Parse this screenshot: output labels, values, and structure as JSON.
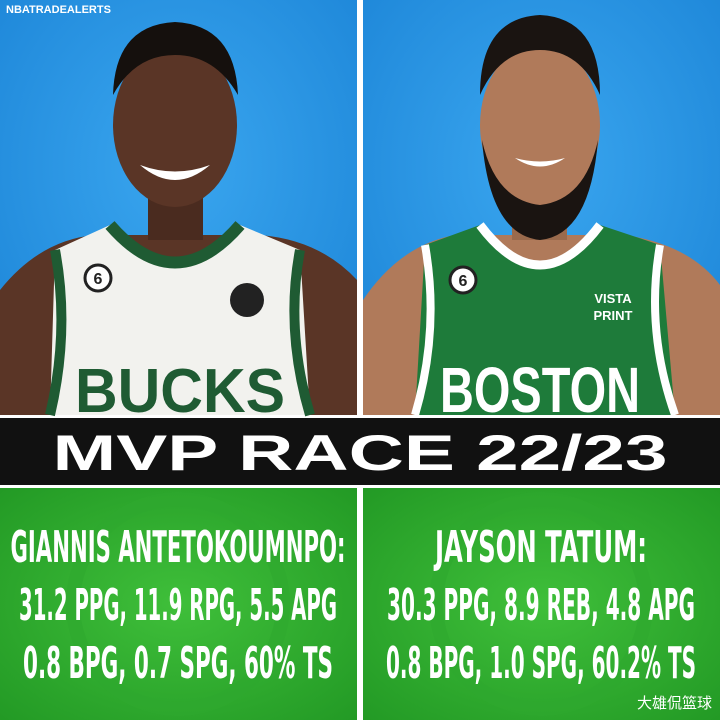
{
  "header": {
    "handle": "NBATRADEALERTS",
    "title": "MVP RACE 22/23"
  },
  "players": [
    {
      "name": "GIANNIS ANTETOKOUMNPO:",
      "line1": "31.2 PPG, 11.9 RPG, 5.5 APG",
      "line2": "0.8 BPG, 0.7 SPG, 60% TS",
      "jersey": "BUCKS",
      "number": "6"
    },
    {
      "name": "JAYSON TATUM:",
      "line1": "30.3 PPG, 8.9 REB, 4.8 APG",
      "line2": "0.8 BPG, 1.0 SPG, 60.2% TS",
      "jersey": "BOSTON",
      "number": "6",
      "sponsor_top": "VISTA",
      "sponsor_bottom": "PRINT"
    }
  ],
  "watermark": "大雄侃篮球"
}
